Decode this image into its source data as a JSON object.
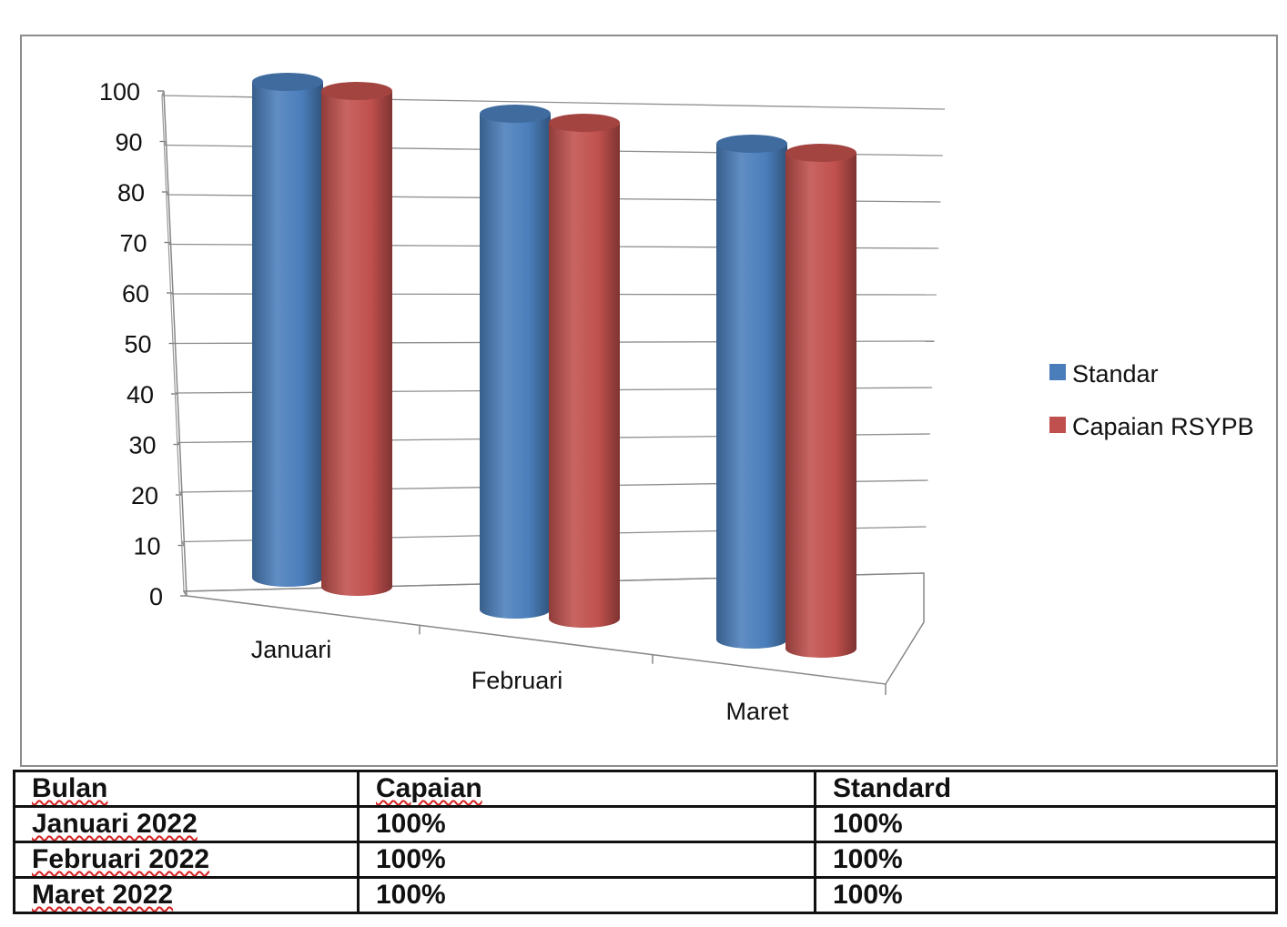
{
  "chart_data": {
    "type": "bar",
    "style": "3d-cylinder",
    "categories": [
      "Januari",
      "Februari",
      "Maret"
    ],
    "series": [
      {
        "name": "Standar",
        "color": "#4a7ebb",
        "values": [
          100,
          100,
          100
        ]
      },
      {
        "name": "Capaian RSYPB",
        "color": "#c0504d",
        "values": [
          100,
          100,
          100
        ]
      }
    ],
    "ylim": [
      0,
      100
    ],
    "yticks": [
      0,
      10,
      20,
      30,
      40,
      50,
      60,
      70,
      80,
      90,
      100
    ],
    "grid": true,
    "legend_position": "right"
  },
  "table": {
    "headers": [
      "Bulan",
      "Capaian",
      "Standard"
    ],
    "rows": [
      [
        "Januari 2022",
        "100%",
        "100%"
      ],
      [
        "Februari 2022",
        "100%",
        "100%"
      ],
      [
        "Maret 2022",
        "100%",
        "100%"
      ]
    ]
  }
}
